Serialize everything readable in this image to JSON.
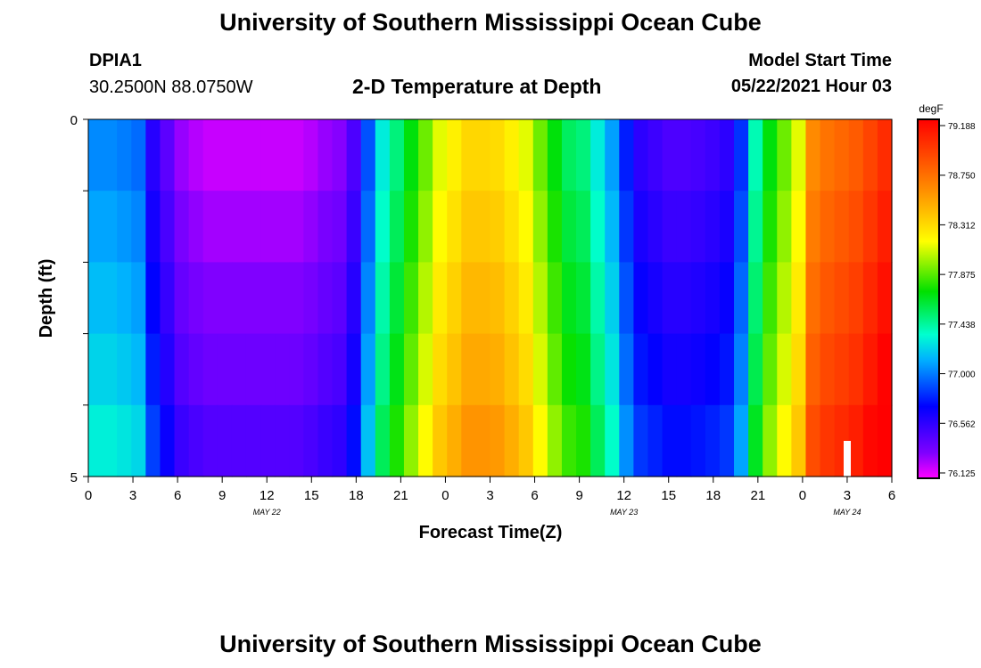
{
  "page": {
    "title_top": "University of Southern Mississippi Ocean Cube",
    "title_bottom": "University of Southern Mississippi Ocean Cube",
    "station": "DPIA1",
    "coords": "30.2500N  88.0750W",
    "plot_title": "2-D Temperature at Depth",
    "model_start_label": "Model Start Time",
    "model_start_value": "05/22/2021 Hour 03"
  },
  "chart_data": {
    "type": "heatmap",
    "title": "2-D Temperature at Depth",
    "xlabel": "Forecast Time(Z)",
    "ylabel": "Depth (ft)",
    "x_tick_labels": [
      "0",
      "3",
      "6",
      "9",
      "12",
      "15",
      "18",
      "21",
      "0",
      "3",
      "6",
      "9",
      "12",
      "15",
      "18",
      "21",
      "0",
      "3",
      "6"
    ],
    "x_date_labels": [
      {
        "label": "MAY 22",
        "hour_index": 12
      },
      {
        "label": "MAY 23",
        "hour_index": 36
      },
      {
        "label": "MAY 24",
        "hour_index": 51
      }
    ],
    "y_tick_labels": [
      "0",
      "5"
    ],
    "ylim": [
      0,
      5
    ],
    "hours_total": 54,
    "depth_levels": 5,
    "colorbar": {
      "unit": "degF",
      "min": 76.125,
      "max": 79.188,
      "ticks": [
        "79.188",
        "78.750",
        "78.312",
        "77.875",
        "77.438",
        "77.000",
        "76.562",
        "76.125"
      ]
    },
    "value_profile": [
      77.05,
      77.05,
      77.02,
      76.98,
      76.62,
      76.45,
      76.3,
      76.25,
      76.22,
      76.22,
      76.22,
      76.22,
      76.22,
      76.22,
      76.22,
      76.25,
      76.3,
      76.33,
      76.5,
      76.92,
      77.3,
      77.5,
      77.7,
      77.9,
      78.1,
      78.2,
      78.3,
      78.3,
      78.28,
      78.2,
      78.1,
      77.9,
      77.7,
      77.55,
      77.5,
      77.3,
      77.1,
      76.8,
      76.6,
      76.55,
      76.5,
      76.5,
      76.52,
      76.55,
      76.6,
      76.85,
      77.4,
      77.7,
      77.9,
      78.1,
      78.6,
      78.7,
      78.75,
      78.8,
      78.9,
      79.0
    ],
    "depth_offsets": [
      0.0,
      0.06,
      0.12,
      0.18,
      0.26
    ]
  }
}
